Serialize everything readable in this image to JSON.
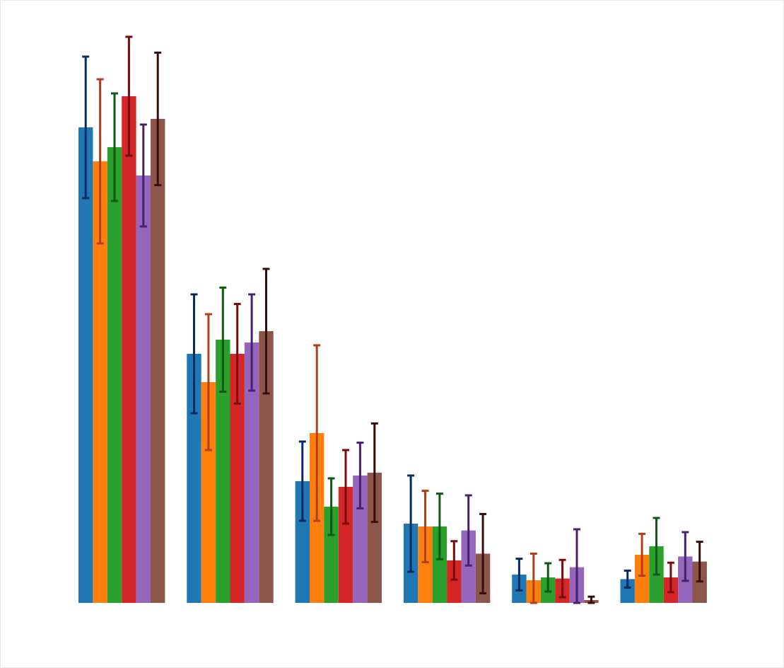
{
  "chart_data": {
    "type": "bar",
    "title": "",
    "xlabel": "",
    "ylabel": "",
    "ylim": [
      0,
      100
    ],
    "grid": false,
    "legend": "none",
    "categories": [
      "",
      "",
      "",
      "",
      "",
      ""
    ],
    "series": [
      {
        "color": "#1f77b4",
        "error_color": "#082a63",
        "values": [
          84.0,
          44.0,
          21.5,
          14.0,
          5.0,
          4.2
        ],
        "errors": [
          12.5,
          10.5,
          7.0,
          8.5,
          2.8,
          1.5
        ]
      },
      {
        "color": "#ff7f0e",
        "error_color": "#b0401a",
        "values": [
          78.0,
          39.0,
          30.0,
          13.5,
          4.0,
          8.5
        ],
        "errors": [
          14.5,
          12.0,
          15.5,
          6.3,
          4.7,
          3.7
        ]
      },
      {
        "color": "#2ca02c",
        "error_color": "#0d5a12",
        "values": [
          80.5,
          46.5,
          17.0,
          13.5,
          4.5,
          10.0
        ],
        "errors": [
          9.5,
          9.2,
          5.0,
          5.8,
          2.5,
          5.0
        ]
      },
      {
        "color": "#d62728",
        "error_color": "#7a0a0a",
        "values": [
          89.5,
          44.0,
          20.5,
          7.5,
          4.3,
          4.5
        ],
        "errors": [
          10.5,
          8.8,
          6.5,
          3.4,
          3.3,
          2.6
        ]
      },
      {
        "color": "#9467bd",
        "error_color": "#4a1f6e",
        "values": [
          75.5,
          46.0,
          22.5,
          12.8,
          6.3,
          8.2
        ],
        "errors": [
          9.0,
          8.5,
          5.8,
          6.2,
          6.7,
          4.3
        ]
      },
      {
        "color": "#8c564b",
        "error_color": "#3a0d0d",
        "values": [
          85.5,
          48.0,
          23.0,
          8.7,
          0.5,
          7.3
        ],
        "errors": [
          11.7,
          11.0,
          8.7,
          7.0,
          0.6,
          3.5
        ]
      }
    ]
  }
}
